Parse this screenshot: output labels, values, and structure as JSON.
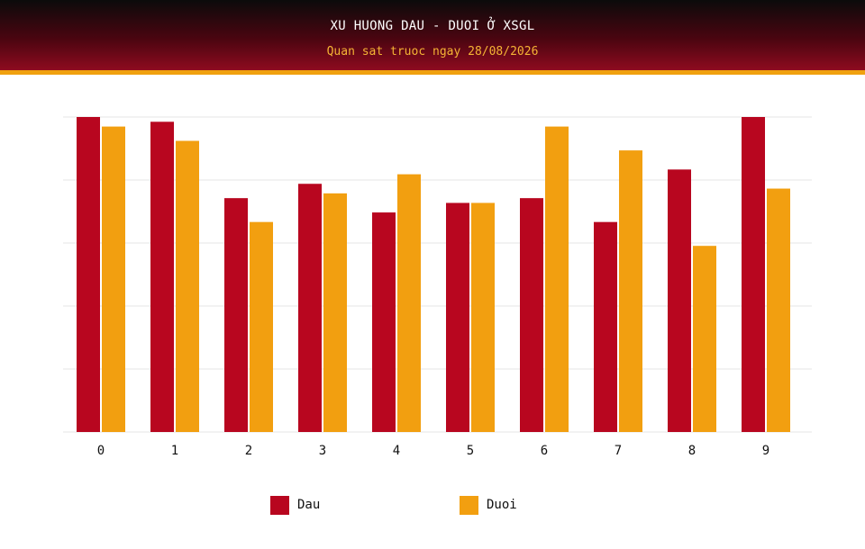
{
  "header": {
    "title": "XU HUONG DAU - DUOI Ở XSGL",
    "subtitle": "Quan sat truoc ngay 28/08/2026"
  },
  "colors": {
    "dau": "#b8061f",
    "duoi": "#f29f10",
    "grid": "#e6e6e6",
    "axis_text": "#111111"
  },
  "chart_data": {
    "type": "bar",
    "title": "XU HUONG DAU - DUOI Ở XSGL",
    "subtitle": "Quan sat truoc ngay 28/08/2026",
    "categories": [
      "0",
      "1",
      "2",
      "3",
      "4",
      "5",
      "6",
      "7",
      "8",
      "9"
    ],
    "series": [
      {
        "name": "Dau",
        "color": "#b8061f",
        "values": [
          13.2,
          13.0,
          9.8,
          10.4,
          9.2,
          9.6,
          9.8,
          8.8,
          11.0,
          13.2
        ]
      },
      {
        "name": "Duoi",
        "color": "#f29f10",
        "values": [
          12.8,
          12.2,
          8.8,
          10.0,
          10.8,
          9.6,
          12.8,
          11.8,
          7.8,
          10.2
        ]
      }
    ],
    "ylim": [
      0,
      13.2
    ],
    "y_gridlines": 5,
    "y_tick_labels_visible": false,
    "grid": true,
    "legend": "bottom"
  }
}
